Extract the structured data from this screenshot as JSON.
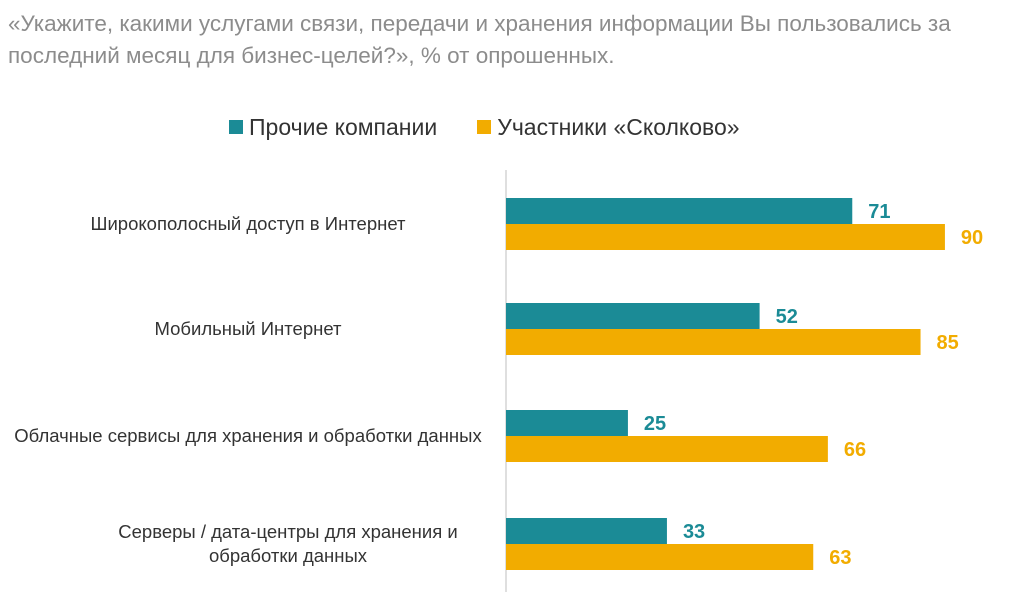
{
  "title": "«Укажите, какими услугами связи, передачи и хранения информации Вы пользовались за последний месяц для бизнес-целей?», % от опрошенных.",
  "colors": {
    "series_1": "#1b8b96",
    "series_2": "#f2ac00",
    "axis": "#bfbfbf",
    "title": "#8c8c8c",
    "text": "#333333"
  },
  "legend": [
    {
      "label": "Прочие компании"
    },
    {
      "label": "Участники «Сколково»"
    }
  ],
  "chart_data": {
    "type": "bar",
    "orientation": "horizontal",
    "title": "«Укажите, какими услугами связи, передачи и хранения информации Вы пользовались за последний месяц для бизнес-целей?», % от опрошенных.",
    "categories": [
      "Широкополосный доступ в Интернет",
      "Мобильный Интернет",
      "Облачные сервисы для хранения и обработки данных",
      "Серверы / дата-центры для хранения и обработки данных"
    ],
    "series": [
      {
        "name": "Прочие компании",
        "values": [
          71,
          52,
          25,
          33
        ]
      },
      {
        "name": "Участники «Сколково»",
        "values": [
          90,
          85,
          66,
          63
        ]
      }
    ],
    "xlim": [
      0,
      90
    ],
    "legend_position": "top",
    "data_labels": true,
    "grid": false
  }
}
